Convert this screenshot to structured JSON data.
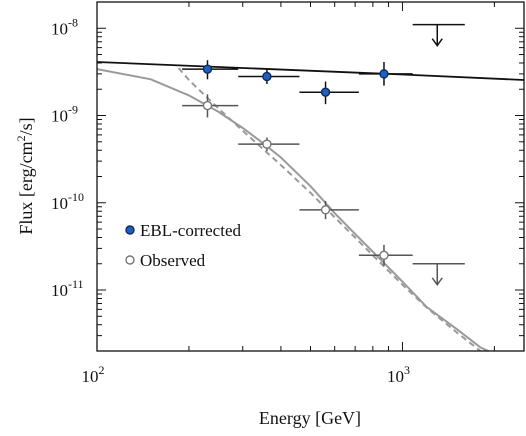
{
  "chart_data": {
    "type": "scatter",
    "xlabel": "Energy [GeV]",
    "ylabel": "Flux [erg/cm^2/s]",
    "x_scale": "log",
    "y_scale": "log",
    "xlim": [
      100,
      2500
    ],
    "ylim": [
      2e-12,
      2e-08
    ],
    "x_ticks": [
      {
        "base": "10",
        "exp": "2",
        "value": 100
      },
      {
        "base": "10",
        "exp": "3",
        "value": 1000
      }
    ],
    "y_ticks": [
      {
        "base": "10",
        "exp": "-8",
        "value": 1e-08
      },
      {
        "base": "10",
        "exp": "-9",
        "value": 1e-09
      },
      {
        "base": "10",
        "exp": "-10",
        "value": 1e-10
      },
      {
        "base": "10",
        "exp": "-11",
        "value": 1e-11
      }
    ],
    "series": [
      {
        "name": "EBL-corrected",
        "color": "#1f5fbf",
        "marker": "filled-circle",
        "points": [
          {
            "x": 230,
            "y": 3.4e-09,
            "xerr": [
              190,
              290
            ],
            "yerr": [
              2.6e-09,
              4.3e-09
            ]
          },
          {
            "x": 360,
            "y": 2.8e-09,
            "xerr": [
              290,
              460
            ],
            "yerr": [
              2.3e-09,
              3.4e-09
            ]
          },
          {
            "x": 560,
            "y": 1.85e-09,
            "xerr": [
              460,
              720
            ],
            "yerr": [
              1.35e-09,
              2.45e-09
            ]
          },
          {
            "x": 870,
            "y": 3e-09,
            "xerr": [
              720,
              1080
            ],
            "yerr": [
              2.2e-09,
              4.1e-09
            ]
          }
        ],
        "upper_limits": [
          {
            "x": 1300,
            "y": 1.1e-08,
            "xerr": [
              1080,
              1600
            ]
          }
        ]
      },
      {
        "name": "Observed",
        "color": "#8c8c8c",
        "marker": "open-circle",
        "points": [
          {
            "x": 230,
            "y": 1.3e-09,
            "xerr": [
              190,
              290
            ],
            "yerr": [
              9.5e-10,
              1.75e-09
            ]
          },
          {
            "x": 360,
            "y": 4.7e-10,
            "xerr": [
              290,
              460
            ],
            "yerr": [
              3.9e-10,
              5.6e-10
            ]
          },
          {
            "x": 560,
            "y": 8.3e-11,
            "xerr": [
              460,
              720
            ],
            "yerr": [
              6.5e-11,
              1.05e-10
            ]
          },
          {
            "x": 870,
            "y": 2.5e-11,
            "xerr": [
              720,
              1080
            ],
            "yerr": [
              1.9e-11,
              3.3e-11
            ]
          }
        ],
        "upper_limits": [
          {
            "x": 1300,
            "y": 2e-11,
            "xerr": [
              1080,
              1600
            ]
          }
        ]
      }
    ],
    "curves": [
      {
        "id": "intrinsic-fit",
        "color": "#111111",
        "dash": "none",
        "points": [
          [
            100,
            4.1e-09
          ],
          [
            300,
            3.5e-09
          ],
          [
            1000,
            2.95e-09
          ],
          [
            2500,
            2.55e-09
          ]
        ]
      },
      {
        "id": "observed-fit",
        "color": "#9a9a9a",
        "dash": "none",
        "points": [
          [
            100,
            3.4e-09
          ],
          [
            150,
            2.6e-09
          ],
          [
            200,
            1.7e-09
          ],
          [
            250,
            1.1e-09
          ],
          [
            300,
            7.2e-10
          ],
          [
            350,
            4.8e-10
          ],
          [
            400,
            3.3e-10
          ],
          [
            500,
            1.55e-10
          ],
          [
            600,
            7.6e-11
          ],
          [
            700,
            4.4e-11
          ],
          [
            800,
            2.75e-11
          ],
          [
            1000,
            1.25e-11
          ],
          [
            1200,
            6.4e-12
          ],
          [
            1500,
            3.6e-12
          ],
          [
            1800,
            2.2e-12
          ],
          [
            2500,
            1.3e-12
          ]
        ]
      },
      {
        "id": "observed-fit-alt",
        "color": "#9a9a9a",
        "dash": "6,4",
        "points": [
          [
            185,
            3.5e-09
          ],
          [
            200,
            2.55e-09
          ],
          [
            250,
            1.2e-09
          ],
          [
            300,
            6.7e-10
          ],
          [
            400,
            2.7e-10
          ],
          [
            500,
            1.3e-10
          ],
          [
            600,
            6.8e-11
          ],
          [
            700,
            4e-11
          ],
          [
            800,
            2.5e-11
          ],
          [
            1000,
            1.15e-11
          ],
          [
            1200,
            6.3e-12
          ],
          [
            1500,
            3.3e-12
          ],
          [
            1800,
            2e-12
          ]
        ]
      }
    ],
    "legend": {
      "placement": "lower-left",
      "entries": [
        {
          "label": "EBL-corrected",
          "marker": "filled-circle",
          "color": "#1f5fbf"
        },
        {
          "label": "Observed",
          "marker": "open-circle",
          "color": "#8c8c8c"
        }
      ]
    },
    "grid": false
  }
}
